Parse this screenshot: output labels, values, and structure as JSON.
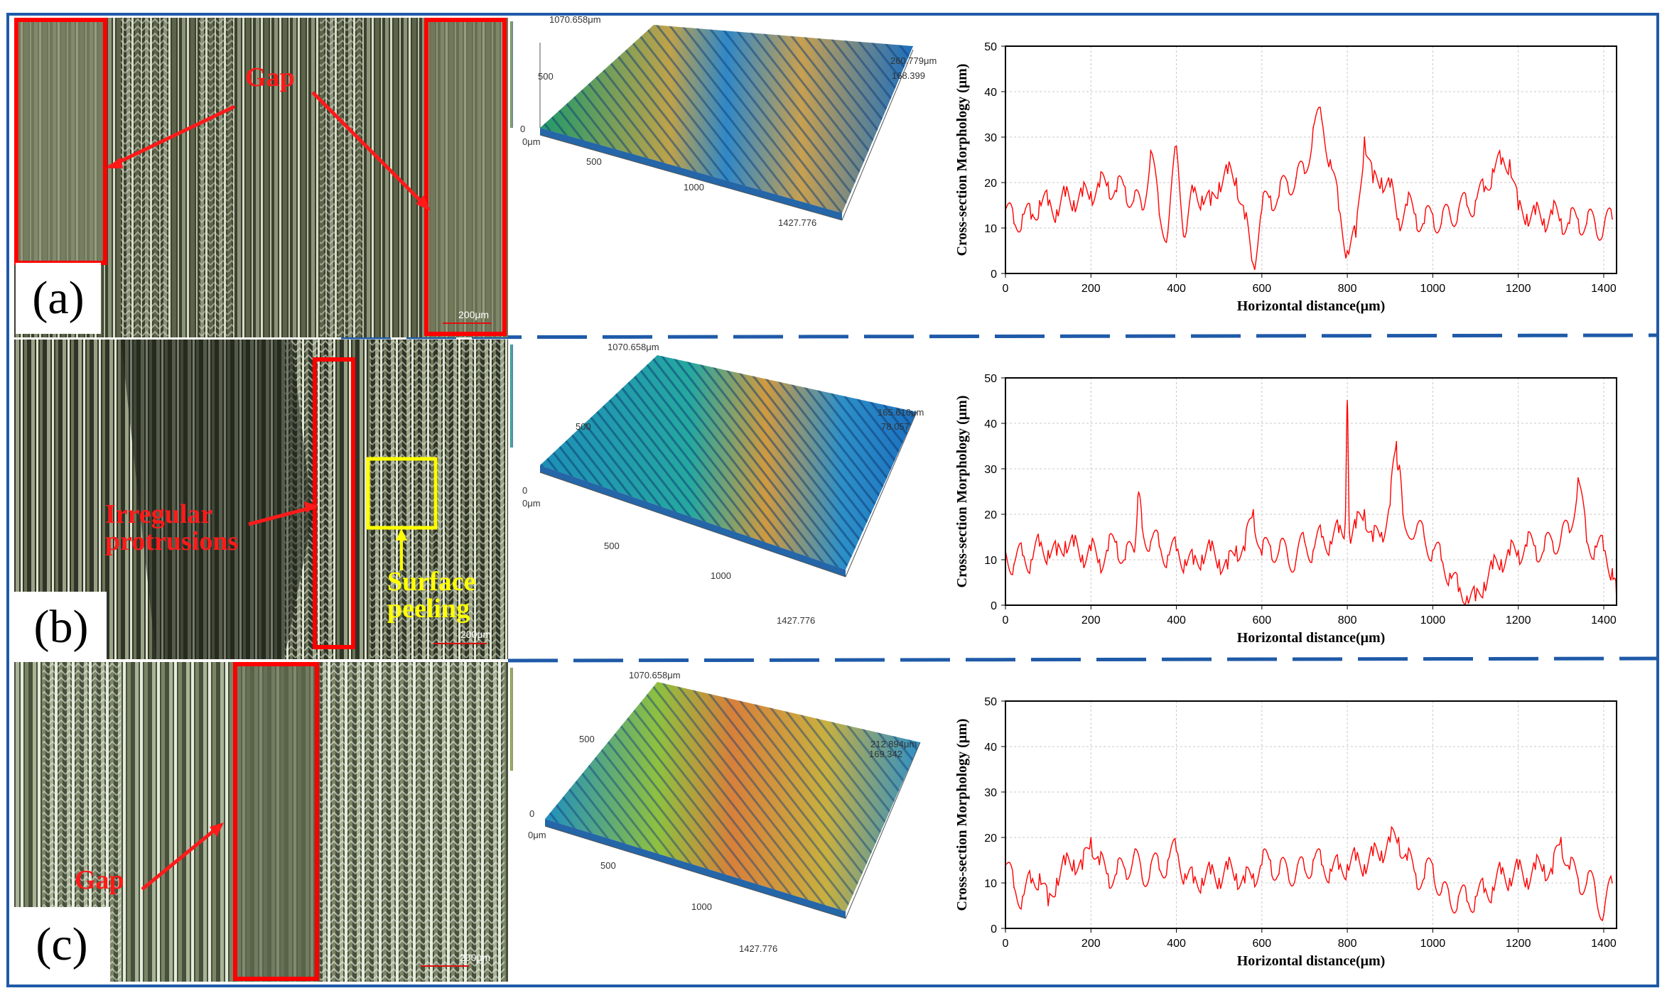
{
  "panels": [
    {
      "id": "a",
      "label": "(a)",
      "annotations": [
        {
          "text": "Gap",
          "color": "#ff1a1a"
        }
      ],
      "scale_bar": "200μm",
      "topo": {
        "y_top": "1070.658μm",
        "y_mid": "500",
        "y_zero": "0",
        "x_start": "0μm",
        "x_mid1": "500",
        "x_mid2": "1000",
        "x_end": "1427.776",
        "z_max": "260.779μm",
        "z_val": "168.399"
      },
      "chart": {
        "title": "",
        "xlabel": "Horizontal distance(μm)",
        "ylabel": "Cross-section Morphology (μm)",
        "x_ticks": [
          "0",
          "200",
          "400",
          "600",
          "800",
          "1000",
          "1200",
          "1400"
        ],
        "y_ticks": [
          "0",
          "10",
          "20",
          "30",
          "40",
          "50"
        ]
      }
    },
    {
      "id": "b",
      "label": "(b)",
      "annotations": [
        {
          "text": "Irregular protrusions",
          "color": "#ff1a1a"
        },
        {
          "text": "Surface peeling",
          "color": "#ffff00"
        }
      ],
      "scale_bar": "200μm",
      "topo": {
        "y_top": "1070.658μm",
        "y_mid": "500",
        "y_zero": "0",
        "x_start": "0μm",
        "x_mid1": "500",
        "x_mid2": "1000",
        "x_end": "1427.776",
        "z_max": "165.616μm",
        "z_val": "78.057"
      },
      "chart": {
        "title": "",
        "xlabel": "Horizontal distance(μm)",
        "ylabel": "Cross-section Morphology (μm)",
        "x_ticks": [
          "0",
          "200",
          "400",
          "600",
          "800",
          "1000",
          "1200",
          "1400"
        ],
        "y_ticks": [
          "0",
          "10",
          "20",
          "30",
          "40",
          "50"
        ]
      }
    },
    {
      "id": "c",
      "label": "(c)",
      "annotations": [
        {
          "text": "Gap",
          "color": "#ff1a1a"
        }
      ],
      "scale_bar": "200μm",
      "topo": {
        "y_top": "1070.658μm",
        "y_mid": "500",
        "y_zero": "0",
        "x_start": "0μm",
        "x_mid1": "500",
        "x_mid2": "1000",
        "x_end": "1427.776",
        "z_max": "212.894μm",
        "z_val": "169.342"
      },
      "chart": {
        "title": "",
        "xlabel": "Horizontal distance(μm)",
        "ylabel": "Cross-section Morphology (μm)",
        "x_ticks": [
          "0",
          "200",
          "400",
          "600",
          "800",
          "1000",
          "1200",
          "1400"
        ],
        "y_ticks": [
          "0",
          "10",
          "20",
          "30",
          "40",
          "50"
        ]
      }
    }
  ],
  "colors": {
    "frame": "#1f5aa8",
    "line": "#ff0000",
    "annot_red": "#ff1a1a",
    "annot_yellow": "#ffff00",
    "grid": "#c8c8c8"
  },
  "chart_data": [
    {
      "type": "line",
      "xlabel": "Horizontal distance(μm)",
      "ylabel": "Cross-section Morphology (μm)",
      "xlim": [
        0,
        1430
      ],
      "ylim": [
        0,
        50
      ],
      "grid": true,
      "series": [
        {
          "color": "#ff0000",
          "x": [
            0,
            20,
            40,
            60,
            80,
            100,
            120,
            140,
            160,
            180,
            200,
            220,
            240,
            260,
            280,
            300,
            320,
            340,
            360,
            380,
            400,
            420,
            440,
            460,
            480,
            500,
            520,
            540,
            560,
            580,
            600,
            620,
            640,
            660,
            680,
            700,
            720,
            740,
            760,
            780,
            800,
            820,
            840,
            860,
            880,
            900,
            920,
            940,
            960,
            980,
            1000,
            1020,
            1040,
            1060,
            1080,
            1100,
            1120,
            1140,
            1160,
            1180,
            1200,
            1220,
            1240,
            1260,
            1280,
            1300,
            1320,
            1340,
            1360,
            1380,
            1400,
            1420
          ],
          "y": [
            14,
            11,
            13,
            12,
            16,
            15,
            14,
            17,
            16,
            17,
            18,
            19,
            20,
            18,
            19,
            16,
            14,
            27,
            13,
            9,
            28,
            8,
            18,
            17,
            15,
            20,
            22,
            21,
            12,
            2,
            14,
            17,
            17,
            20,
            21,
            22,
            32,
            34,
            25,
            14,
            5,
            8,
            30,
            20,
            21,
            19,
            12,
            15,
            13,
            11,
            13,
            11,
            13,
            14,
            15,
            16,
            18,
            23,
            24,
            25,
            14,
            13,
            13,
            12,
            13,
            12,
            11,
            12,
            11,
            11,
            10,
            12
          ]
        }
      ]
    },
    {
      "type": "line",
      "xlabel": "Horizontal distance(μm)",
      "ylabel": "Cross-section Morphology (μm)",
      "xlim": [
        0,
        1430
      ],
      "ylim": [
        0,
        50
      ],
      "grid": true,
      "series": [
        {
          "color": "#ff0000",
          "x": [
            0,
            20,
            40,
            60,
            80,
            100,
            120,
            140,
            160,
            180,
            200,
            220,
            240,
            260,
            280,
            300,
            310,
            320,
            340,
            360,
            380,
            400,
            420,
            440,
            460,
            480,
            500,
            520,
            540,
            560,
            580,
            600,
            620,
            640,
            660,
            680,
            700,
            720,
            740,
            760,
            780,
            795,
            800,
            805,
            820,
            840,
            860,
            880,
            900,
            915,
            920,
            930,
            960,
            980,
            1000,
            1020,
            1040,
            1060,
            1080,
            1100,
            1120,
            1140,
            1160,
            1180,
            1200,
            1220,
            1240,
            1260,
            1280,
            1300,
            1320,
            1340,
            1360,
            1380,
            1400,
            1420,
            1430
          ],
          "y": [
            12,
            9,
            11,
            10,
            13,
            12,
            11,
            14,
            13,
            11,
            12,
            10,
            12,
            14,
            10,
            12,
            24,
            17,
            14,
            13,
            11,
            12,
            10,
            9,
            11,
            12,
            10,
            8,
            13,
            12,
            21,
            11,
            13,
            12,
            11,
            10,
            14,
            12,
            15,
            14,
            16,
            18,
            45,
            16,
            17,
            21,
            14,
            16,
            22,
            36,
            30,
            20,
            16,
            15,
            12,
            10,
            7,
            3,
            2,
            1,
            5,
            8,
            10,
            11,
            12,
            13,
            13,
            12,
            14,
            15,
            16,
            28,
            14,
            13,
            12,
            8,
            1
          ]
        }
      ]
    },
    {
      "type": "line",
      "xlabel": "Horizontal distance(μm)",
      "ylabel": "Cross-section Morphology (μm)",
      "xlim": [
        0,
        1430
      ],
      "ylim": [
        0,
        50
      ],
      "grid": true,
      "series": [
        {
          "color": "#ff0000",
          "x": [
            0,
            20,
            40,
            60,
            80,
            100,
            120,
            140,
            160,
            180,
            200,
            220,
            240,
            260,
            280,
            300,
            320,
            340,
            360,
            380,
            400,
            420,
            440,
            460,
            480,
            500,
            520,
            540,
            560,
            580,
            600,
            620,
            640,
            660,
            680,
            700,
            720,
            740,
            760,
            780,
            800,
            820,
            840,
            860,
            880,
            900,
            920,
            940,
            960,
            980,
            1000,
            1020,
            1040,
            1060,
            1080,
            1100,
            1120,
            1140,
            1160,
            1180,
            1200,
            1220,
            1240,
            1260,
            1280,
            1300,
            1320,
            1340,
            1360,
            1380,
            1400,
            1420
          ],
          "y": [
            14,
            9,
            7,
            10,
            12,
            5,
            11,
            14,
            15,
            13,
            20,
            14,
            12,
            12,
            13,
            16,
            11,
            14,
            13,
            15,
            17,
            12,
            10,
            11,
            12,
            11,
            13,
            12,
            10,
            12,
            14,
            15,
            12,
            13,
            12,
            13,
            15,
            14,
            13,
            13,
            14,
            15,
            14,
            16,
            17,
            19,
            20,
            15,
            12,
            11,
            14,
            8,
            6,
            7,
            6,
            7,
            8,
            9,
            12,
            11,
            13,
            11,
            13,
            14,
            12,
            20,
            13,
            11,
            10,
            9,
            3,
            10
          ]
        }
      ]
    }
  ]
}
